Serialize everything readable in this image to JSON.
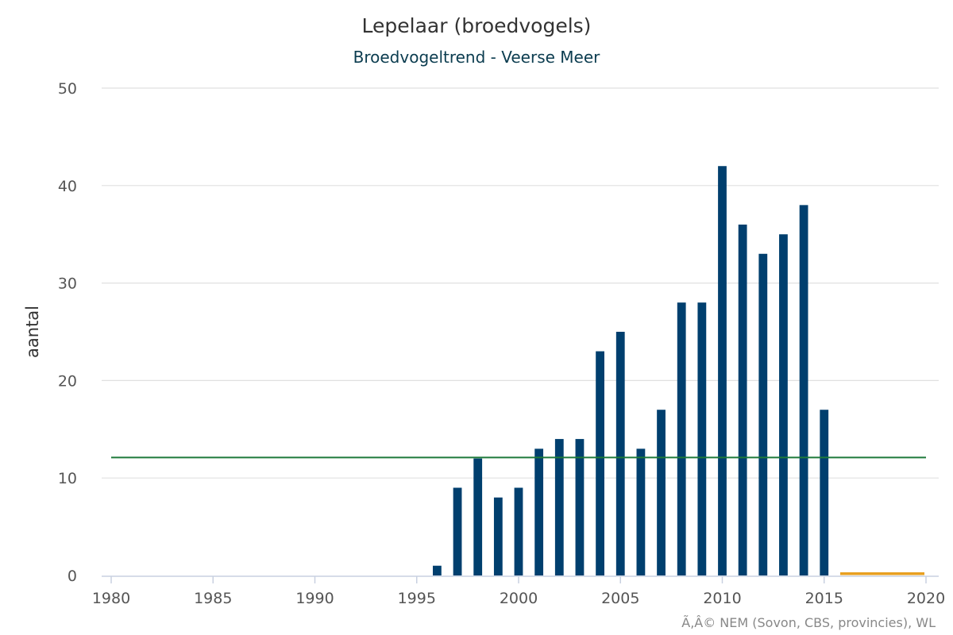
{
  "chart_data": {
    "type": "bar",
    "title": "Lepelaar (broedvogels)",
    "subtitle": "Broedvogeltrend - Veerse Meer",
    "ylabel": "aantal",
    "xlim": [
      1980,
      2020
    ],
    "ylim": [
      0,
      50
    ],
    "y_ticks": [
      0,
      10,
      20,
      30,
      40,
      50
    ],
    "x_ticks": [
      1980,
      1985,
      1990,
      1995,
      2000,
      2005,
      2010,
      2015,
      2020
    ],
    "grid": true,
    "colors": {
      "bars": "#003f6e",
      "reference_line": "#1e7a3a",
      "estimate": "#e8a020"
    },
    "x": [
      1996,
      1997,
      1998,
      1999,
      2000,
      2001,
      2002,
      2003,
      2004,
      2005,
      2006,
      2007,
      2008,
      2009,
      2010,
      2011,
      2012,
      2013,
      2014,
      2015
    ],
    "values": [
      1,
      9,
      12,
      8,
      9,
      13,
      14,
      14,
      23,
      25,
      13,
      17,
      28,
      28,
      42,
      36,
      33,
      35,
      38,
      17
    ],
    "reference_line": 12.1,
    "estimate_bar": {
      "x_start": 2016,
      "x_end": 2020,
      "value": 0.3
    }
  },
  "credit": "Ã‚Â© NEM (Sovon, CBS, provincies), WL"
}
